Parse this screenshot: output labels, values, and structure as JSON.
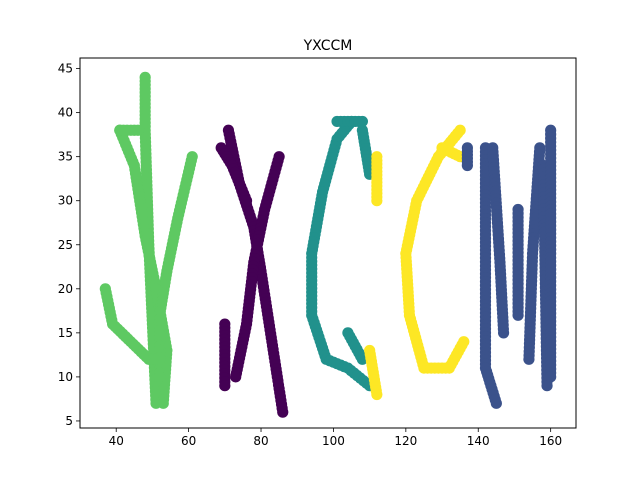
{
  "chart_data": {
    "type": "scatter",
    "title": "YXCCM",
    "xlabel": "",
    "ylabel": "",
    "xlim": [
      30,
      167
    ],
    "ylim": [
      4.2,
      46.2
    ],
    "xticks": [
      40,
      60,
      80,
      100,
      120,
      140,
      160
    ],
    "yticks": [
      5,
      10,
      15,
      20,
      25,
      30,
      35,
      40,
      45
    ],
    "grid": false,
    "legend": "none",
    "series": [
      {
        "color": "#5ec962",
        "strokes": [
          [
            [
              48,
              44
            ],
            [
              48,
              38
            ],
            [
              49,
              25
            ],
            [
              51,
              7
            ]
          ],
          [
            [
              41,
              38
            ],
            [
              45,
              34
            ],
            [
              48,
              26
            ],
            [
              51,
              20
            ],
            [
              54,
              13
            ],
            [
              53,
              7
            ]
          ],
          [
            [
              61,
              35
            ],
            [
              57,
              28
            ],
            [
              54,
              22
            ],
            [
              52,
              17
            ],
            [
              52,
              10
            ]
          ],
          [
            [
              41,
              38
            ],
            [
              46,
              38
            ]
          ],
          [
            [
              37,
              20
            ],
            [
              39,
              16
            ],
            [
              44,
              14
            ],
            [
              49,
              12
            ],
            [
              52,
              12
            ]
          ]
        ]
      },
      {
        "color": "#440154",
        "strokes": [
          [
            [
              71,
              38
            ],
            [
              74,
              32
            ],
            [
              78,
              27
            ],
            [
              80,
              22
            ],
            [
              83,
              14
            ],
            [
              86,
              6
            ]
          ],
          [
            [
              85,
              35
            ],
            [
              81,
              29
            ],
            [
              78,
              23
            ],
            [
              76,
              16
            ],
            [
              73,
              10
            ]
          ],
          [
            [
              69,
              36
            ],
            [
              72,
              34
            ],
            [
              76,
              30
            ]
          ],
          [
            [
              70,
              16
            ],
            [
              70,
              9
            ]
          ]
        ]
      },
      {
        "color": "#21918c",
        "strokes": [
          [
            [
              105,
              39
            ],
            [
              101,
              37
            ],
            [
              97,
              31
            ],
            [
              94,
              24
            ],
            [
              94,
              17
            ],
            [
              98,
              12
            ],
            [
              104,
              11
            ],
            [
              110,
              9
            ]
          ],
          [
            [
              101,
              39
            ],
            [
              108,
              39
            ]
          ],
          [
            [
              108,
              38
            ],
            [
              110,
              33
            ]
          ],
          [
            [
              104,
              15
            ],
            [
              108,
              12
            ]
          ]
        ]
      },
      {
        "color": "#fde725",
        "strokes": [
          [
            [
              135,
              38
            ],
            [
              129,
              35
            ],
            [
              123,
              30
            ],
            [
              120,
              24
            ],
            [
              121,
              17
            ],
            [
              125,
              11
            ],
            [
              132,
              11
            ],
            [
              136,
              14
            ]
          ],
          [
            [
              130,
              36
            ],
            [
              135,
              35
            ]
          ],
          [
            [
              112,
              35
            ],
            [
              112,
              30
            ]
          ],
          [
            [
              110,
              13
            ],
            [
              112,
              8
            ]
          ]
        ]
      },
      {
        "color": "#3b528b",
        "strokes": [
          [
            [
              142,
              36
            ],
            [
              142,
              11
            ],
            [
              145,
              7
            ]
          ],
          [
            [
              144,
              36
            ],
            [
              146,
              23
            ],
            [
              147,
              15
            ]
          ],
          [
            [
              151,
              29
            ],
            [
              151,
              17
            ]
          ],
          [
            [
              157,
              36
            ],
            [
              155,
              24
            ],
            [
              154,
              12
            ]
          ],
          [
            [
              158,
              34
            ],
            [
              159,
              9
            ]
          ],
          [
            [
              160,
              38
            ],
            [
              160,
              10
            ]
          ],
          [
            [
              137,
              36
            ],
            [
              137,
              34
            ]
          ]
        ]
      }
    ]
  }
}
